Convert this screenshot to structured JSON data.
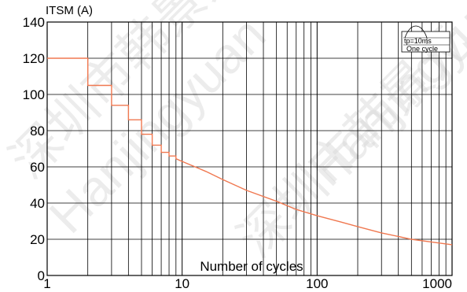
{
  "chart_data": {
    "type": "line",
    "title": "",
    "ylabel": "ITSM (A)",
    "xlabel": "Number of cycles",
    "xscale": "log",
    "xlim": [
      1,
      1000
    ],
    "ylim": [
      0,
      140
    ],
    "xticks": [
      1,
      10,
      100,
      1000
    ],
    "xtick_labels": [
      "1",
      "10",
      "100",
      "1000"
    ],
    "yticks": [
      0,
      20,
      40,
      60,
      80,
      100,
      120,
      140
    ],
    "ytick_labels": [
      "0",
      "20",
      "40",
      "60",
      "80",
      "100",
      "120",
      "140"
    ],
    "grid": true,
    "series": [
      {
        "name": "",
        "color": "#f07850",
        "x": [
          1,
          2,
          2,
          3,
          3,
          4,
          4,
          5,
          5,
          6,
          6,
          7,
          7,
          8,
          8,
          9,
          9,
          10,
          15,
          20,
          30,
          50,
          70,
          100,
          150,
          200,
          300,
          500,
          700,
          1000
        ],
        "y": [
          120,
          120,
          105,
          105,
          94,
          94,
          86,
          86,
          78,
          78,
          72,
          72,
          68,
          68,
          66,
          66,
          64.5,
          63,
          57.5,
          53,
          47,
          41,
          36.5,
          33,
          29.5,
          27,
          23.5,
          20,
          18.5,
          17
        ]
      }
    ],
    "inset": {
      "label_top": "tp=10ms",
      "label_bottom": "One cycle"
    },
    "watermark": {
      "lines": [
        "深圳市韩景元",
        "Hanjingyuan",
        "深圳市韩景元",
        "Hanjingyuan"
      ]
    }
  }
}
